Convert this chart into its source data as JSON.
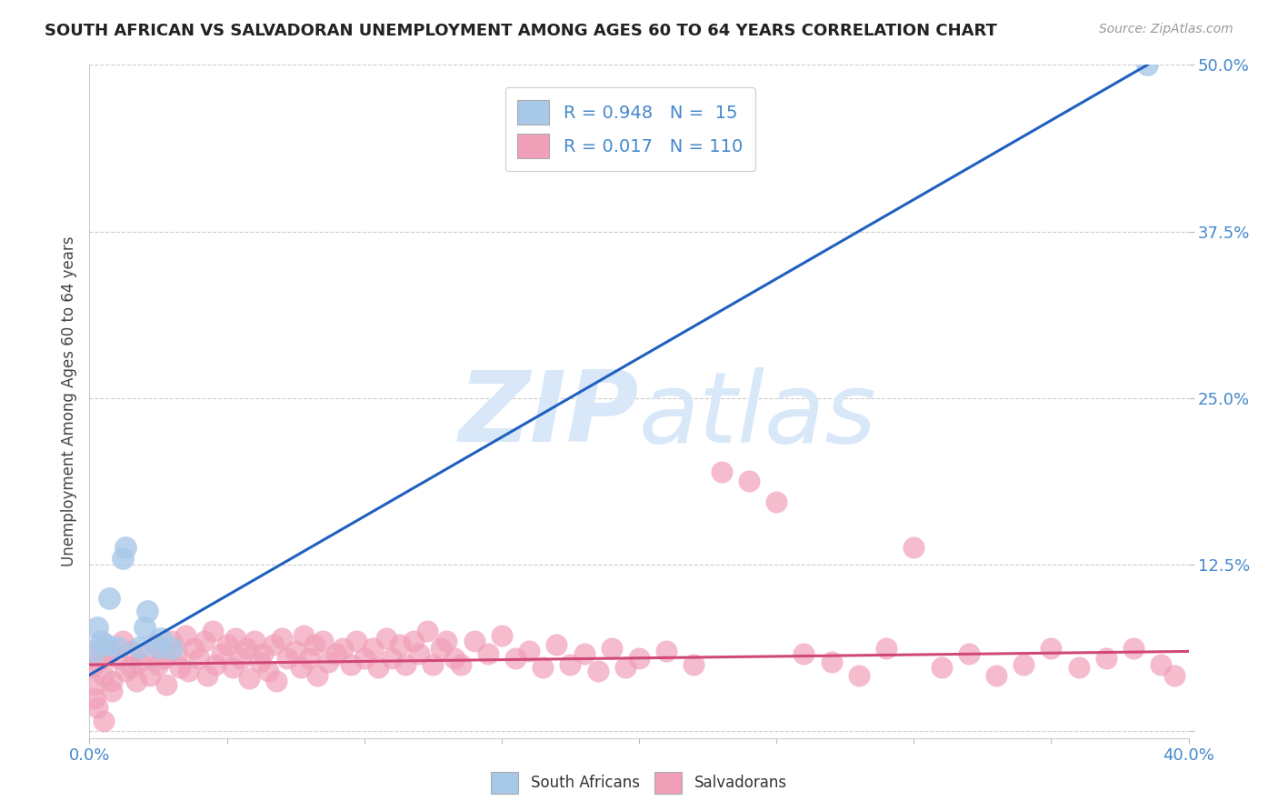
{
  "title": "SOUTH AFRICAN VS SALVADORAN UNEMPLOYMENT AMONG AGES 60 TO 64 YEARS CORRELATION CHART",
  "source": "Source: ZipAtlas.com",
  "ylabel": "Unemployment Among Ages 60 to 64 years",
  "xlim": [
    0.0,
    0.4
  ],
  "ylim": [
    -0.005,
    0.5
  ],
  "yticks": [
    0.0,
    0.125,
    0.25,
    0.375,
    0.5
  ],
  "ytick_labels": [
    "",
    "12.5%",
    "25.0%",
    "37.5%",
    "50.0%"
  ],
  "xtick_labels": [
    "0.0%",
    "",
    "",
    "",
    "",
    "",
    "",
    "",
    "40.0%"
  ],
  "south_african_R": 0.948,
  "south_african_N": 15,
  "salvadoran_R": 0.017,
  "salvadoran_N": 110,
  "blue_scatter_color": "#a8c8e8",
  "pink_scatter_color": "#f0a0b8",
  "blue_line_color": "#2060c0",
  "pink_line_color": "#d04878",
  "tick_label_color": "#4488cc",
  "background_color": "#ffffff",
  "grid_color": "#c8c8c8",
  "watermark_color": "#d8e8f8",
  "sa_x": [
    0.002,
    0.003,
    0.004,
    0.006,
    0.007,
    0.01,
    0.012,
    0.013,
    0.018,
    0.02,
    0.021,
    0.025,
    0.026,
    0.03,
    0.385
  ],
  "sa_y": [
    0.06,
    0.078,
    0.068,
    0.065,
    0.1,
    0.063,
    0.13,
    0.138,
    0.063,
    0.078,
    0.09,
    0.063,
    0.07,
    0.062,
    0.5
  ],
  "salv_x": [
    0.001,
    0.002,
    0.003,
    0.004,
    0.005,
    0.007,
    0.008,
    0.01,
    0.012,
    0.013,
    0.015,
    0.017,
    0.018,
    0.02,
    0.022,
    0.024,
    0.025,
    0.027,
    0.028,
    0.03,
    0.032,
    0.033,
    0.035,
    0.036,
    0.038,
    0.04,
    0.042,
    0.043,
    0.045,
    0.046,
    0.048,
    0.05,
    0.052,
    0.053,
    0.055,
    0.057,
    0.058,
    0.06,
    0.062,
    0.063,
    0.065,
    0.067,
    0.068,
    0.07,
    0.072,
    0.075,
    0.077,
    0.078,
    0.08,
    0.082,
    0.083,
    0.085,
    0.087,
    0.09,
    0.092,
    0.095,
    0.097,
    0.1,
    0.103,
    0.105,
    0.108,
    0.11,
    0.113,
    0.115,
    0.118,
    0.12,
    0.123,
    0.125,
    0.128,
    0.13,
    0.133,
    0.135,
    0.14,
    0.145,
    0.15,
    0.155,
    0.16,
    0.165,
    0.17,
    0.175,
    0.18,
    0.185,
    0.19,
    0.195,
    0.2,
    0.21,
    0.22,
    0.23,
    0.24,
    0.25,
    0.26,
    0.27,
    0.28,
    0.29,
    0.3,
    0.31,
    0.32,
    0.33,
    0.34,
    0.35,
    0.36,
    0.37,
    0.38,
    0.39,
    0.395,
    0.002,
    0.003,
    0.005,
    0.008,
    0.015
  ],
  "salv_y": [
    0.048,
    0.035,
    0.052,
    0.062,
    0.042,
    0.058,
    0.038,
    0.055,
    0.068,
    0.045,
    0.06,
    0.038,
    0.052,
    0.058,
    0.042,
    0.065,
    0.05,
    0.055,
    0.035,
    0.068,
    0.058,
    0.048,
    0.072,
    0.045,
    0.062,
    0.055,
    0.068,
    0.042,
    0.075,
    0.05,
    0.058,
    0.065,
    0.048,
    0.07,
    0.055,
    0.062,
    0.04,
    0.068,
    0.052,
    0.058,
    0.045,
    0.065,
    0.038,
    0.07,
    0.055,
    0.06,
    0.048,
    0.072,
    0.055,
    0.065,
    0.042,
    0.068,
    0.052,
    0.058,
    0.062,
    0.05,
    0.068,
    0.055,
    0.062,
    0.048,
    0.07,
    0.055,
    0.065,
    0.05,
    0.068,
    0.058,
    0.075,
    0.05,
    0.062,
    0.068,
    0.055,
    0.05,
    0.068,
    0.058,
    0.072,
    0.055,
    0.06,
    0.048,
    0.065,
    0.05,
    0.058,
    0.045,
    0.062,
    0.048,
    0.055,
    0.06,
    0.05,
    0.195,
    0.188,
    0.172,
    0.058,
    0.052,
    0.042,
    0.062,
    0.138,
    0.048,
    0.058,
    0.042,
    0.05,
    0.062,
    0.048,
    0.055,
    0.062,
    0.05,
    0.042,
    0.025,
    0.018,
    0.008,
    0.03,
    0.048
  ]
}
